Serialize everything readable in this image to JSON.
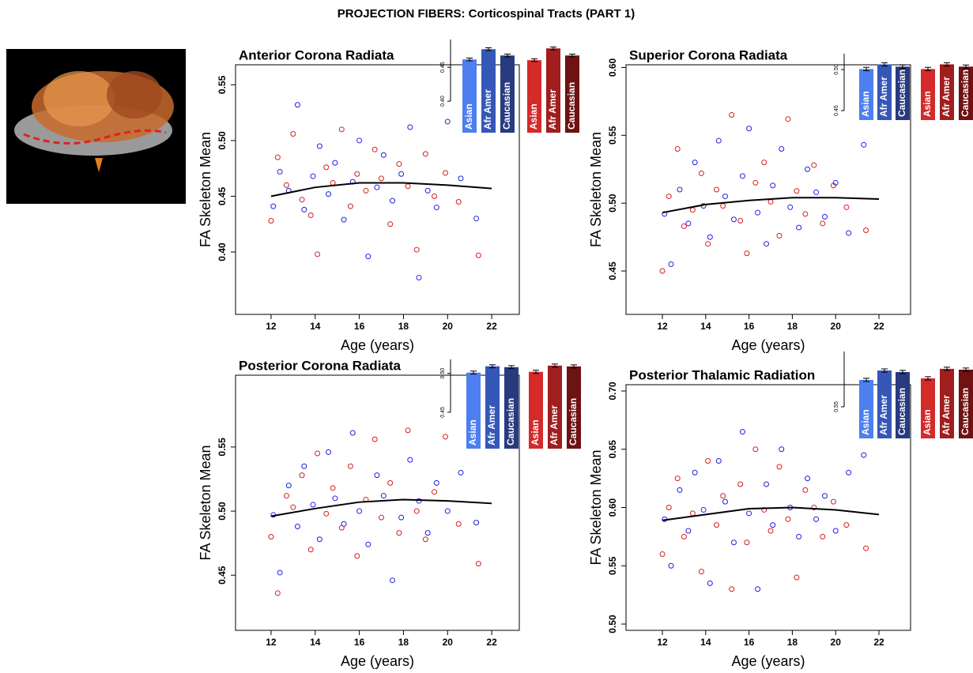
{
  "title": "PROJECTION FIBERS: Corticospinal Tracts (PART 1)",
  "chart_data": [
    {
      "type": "scatter",
      "title": "Anterior Corona Radiata",
      "xlabel": "Age (years)",
      "ylabel": "FA Skeleton Mean",
      "xlim": [
        10.39,
        23.25
      ],
      "ylim": [
        0.344,
        0.568
      ],
      "xticks": [
        12,
        14,
        16,
        18,
        20,
        22
      ],
      "yticks": [
        {
          "value": 0.4,
          "label": "0.40"
        },
        {
          "value": 0.45,
          "label": "0.45"
        },
        {
          "value": 0.5,
          "label": "0.50"
        },
        {
          "value": 0.55,
          "label": "0.55"
        }
      ],
      "series": [
        {
          "color": "#1f1fe6",
          "x": [
            12.1,
            12.4,
            12.8,
            13.2,
            13.5,
            13.9,
            14.2,
            14.6,
            14.9,
            15.3,
            15.7,
            16.0,
            16.4,
            16.8,
            17.1,
            17.5,
            17.9,
            18.3,
            18.7,
            19.1,
            19.5,
            20.0,
            20.6,
            21.3
          ],
          "values": [
            0.441,
            0.472,
            0.455,
            0.532,
            0.438,
            0.468,
            0.495,
            0.452,
            0.48,
            0.429,
            0.463,
            0.5,
            0.396,
            0.458,
            0.487,
            0.446,
            0.47,
            0.512,
            0.377,
            0.455,
            0.44,
            0.517,
            0.466,
            0.43
          ]
        },
        {
          "color": "#d42020",
          "x": [
            12.0,
            12.3,
            12.7,
            13.0,
            13.4,
            13.8,
            14.1,
            14.5,
            14.8,
            15.2,
            15.6,
            15.9,
            16.3,
            16.7,
            17.0,
            17.4,
            17.8,
            18.2,
            18.6,
            19.0,
            19.4,
            19.9,
            20.5,
            21.4
          ],
          "values": [
            0.428,
            0.485,
            0.46,
            0.506,
            0.447,
            0.433,
            0.398,
            0.476,
            0.462,
            0.51,
            0.441,
            0.47,
            0.455,
            0.492,
            0.466,
            0.425,
            0.479,
            0.459,
            0.402,
            0.488,
            0.45,
            0.471,
            0.445,
            0.397
          ]
        }
      ],
      "fit": {
        "color": "#000000",
        "x": [
          12,
          14,
          16,
          18,
          20,
          22
        ],
        "values": [
          0.45,
          0.458,
          0.462,
          0.462,
          0.46,
          0.457
        ]
      },
      "inset": {
        "type": "bar",
        "categories": [
          "Asian",
          "Afr Amer",
          "Caucasian",
          "Asian",
          "Afr Amer",
          "Caucasian"
        ],
        "colors": [
          "#4d7ff0",
          "#3558b8",
          "#283a80",
          "#d42a2a",
          "#a01e1e",
          "#6e1212"
        ],
        "values": [
          0.4616,
          0.4767,
          0.4674,
          0.4605,
          0.4779,
          0.4674
        ],
        "errors": [
          0.002,
          0.002,
          0.002,
          0.002,
          0.002,
          0.002
        ],
        "ylim": [
          0.3535,
          0.491
        ],
        "yticks": [
          {
            "value": 0.4,
            "label": "0.40"
          },
          {
            "value": 0.45,
            "label": "0.45"
          }
        ]
      }
    },
    {
      "type": "scatter",
      "title": "Superior Corona Radiata",
      "xlabel": "Age (years)",
      "ylabel": "FA Skeleton Mean",
      "xlim": [
        10.32,
        23.46
      ],
      "ylim": [
        0.418,
        0.602
      ],
      "xticks": [
        12,
        14,
        16,
        18,
        20,
        22
      ],
      "yticks": [
        {
          "value": 0.45,
          "label": "0.45"
        },
        {
          "value": 0.5,
          "label": "0.50"
        },
        {
          "value": 0.55,
          "label": "0.55"
        },
        {
          "value": 0.6,
          "label": "0.60"
        }
      ],
      "series": [
        {
          "color": "#1f1fe6",
          "x": [
            12.1,
            12.4,
            12.8,
            13.2,
            13.5,
            13.9,
            14.2,
            14.6,
            14.9,
            15.3,
            15.7,
            16.0,
            16.4,
            16.8,
            17.1,
            17.5,
            17.9,
            18.3,
            18.7,
            19.1,
            19.5,
            20.0,
            20.6,
            21.3
          ],
          "values": [
            0.492,
            0.455,
            0.51,
            0.485,
            0.53,
            0.498,
            0.475,
            0.546,
            0.505,
            0.488,
            0.52,
            0.555,
            0.493,
            0.47,
            0.513,
            0.54,
            0.497,
            0.482,
            0.525,
            0.508,
            0.49,
            0.515,
            0.478,
            0.543
          ]
        },
        {
          "color": "#d42020",
          "x": [
            12.0,
            12.3,
            12.7,
            13.0,
            13.4,
            13.8,
            14.1,
            14.5,
            14.8,
            15.2,
            15.6,
            15.9,
            16.3,
            16.7,
            17.0,
            17.4,
            17.8,
            18.2,
            18.6,
            19.0,
            19.4,
            19.9,
            20.5,
            21.4
          ],
          "values": [
            0.45,
            0.505,
            0.54,
            0.483,
            0.495,
            0.522,
            0.47,
            0.51,
            0.498,
            0.565,
            0.487,
            0.463,
            0.515,
            0.53,
            0.501,
            0.476,
            0.562,
            0.509,
            0.492,
            0.528,
            0.485,
            0.513,
            0.497,
            0.48
          ]
        }
      ],
      "fit": {
        "color": "#000000",
        "x": [
          12,
          14,
          16,
          18,
          20,
          22
        ],
        "values": [
          0.493,
          0.499,
          0.502,
          0.504,
          0.504,
          0.503
        ]
      },
      "inset": {
        "type": "bar",
        "categories": [
          "Asian",
          "Afr Amer",
          "Caucasian",
          "Asian",
          "Afr Amer",
          "Caucasian"
        ],
        "colors": [
          "#4d7ff0",
          "#3558b8",
          "#283a80",
          "#d42a2a",
          "#a01e1e",
          "#6e1212"
        ],
        "values": [
          0.5006,
          0.5063,
          0.5035,
          0.5006,
          0.5063,
          0.5035
        ],
        "errors": [
          0.002,
          0.002,
          0.002,
          0.002,
          0.002,
          0.002
        ],
        "ylim": [
          0.4385,
          0.5192
        ],
        "yticks": [
          {
            "value": 0.45,
            "label": "0.45"
          },
          {
            "value": 0.5,
            "label": "0.50"
          }
        ]
      }
    },
    {
      "type": "scatter",
      "title": "Posterior Corona Radiata",
      "xlabel": "Age (years)",
      "ylabel": "FA Skeleton Mean",
      "xlim": [
        10.39,
        23.25
      ],
      "ylim": [
        0.407,
        0.606
      ],
      "xticks": [
        12,
        14,
        16,
        18,
        20,
        22
      ],
      "yticks": [
        {
          "value": 0.45,
          "label": "0.45"
        },
        {
          "value": 0.5,
          "label": "0.50"
        },
        {
          "value": 0.55,
          "label": "0.55"
        }
      ],
      "series": [
        {
          "color": "#1f1fe6",
          "x": [
            12.1,
            12.4,
            12.8,
            13.2,
            13.5,
            13.9,
            14.2,
            14.6,
            14.9,
            15.3,
            15.7,
            16.0,
            16.4,
            16.8,
            17.1,
            17.5,
            17.9,
            18.3,
            18.7,
            19.1,
            19.5,
            20.0,
            20.6,
            21.3
          ],
          "values": [
            0.497,
            0.452,
            0.52,
            0.488,
            0.535,
            0.505,
            0.478,
            0.546,
            0.51,
            0.49,
            0.561,
            0.5,
            0.474,
            0.528,
            0.512,
            0.446,
            0.495,
            0.54,
            0.508,
            0.483,
            0.522,
            0.5,
            0.53,
            0.491
          ]
        },
        {
          "color": "#d42020",
          "x": [
            12.0,
            12.3,
            12.7,
            13.0,
            13.4,
            13.8,
            14.1,
            14.5,
            14.8,
            15.2,
            15.6,
            15.9,
            16.3,
            16.7,
            17.0,
            17.4,
            17.8,
            18.2,
            18.6,
            19.0,
            19.4,
            19.9,
            20.5,
            21.4
          ],
          "values": [
            0.48,
            0.436,
            0.512,
            0.503,
            0.528,
            0.47,
            0.545,
            0.498,
            0.518,
            0.487,
            0.535,
            0.465,
            0.509,
            0.556,
            0.495,
            0.522,
            0.483,
            0.563,
            0.5,
            0.478,
            0.515,
            0.558,
            0.49,
            0.459
          ]
        }
      ],
      "fit": {
        "color": "#000000",
        "x": [
          12,
          14,
          16,
          18,
          20,
          22
        ],
        "values": [
          0.496,
          0.502,
          0.507,
          0.509,
          0.508,
          0.506
        ]
      },
      "inset": {
        "type": "bar",
        "categories": [
          "Asian",
          "Afr Amer",
          "Caucasian",
          "Asian",
          "Afr Amer",
          "Caucasian"
        ],
        "colors": [
          "#4d7ff0",
          "#3558b8",
          "#283a80",
          "#d42a2a",
          "#a01e1e",
          "#6e1212"
        ],
        "values": [
          0.501,
          0.5092,
          0.508,
          0.502,
          0.51,
          0.509
        ],
        "errors": [
          0.002,
          0.002,
          0.002,
          0.002,
          0.002,
          0.002
        ],
        "ylim": [
          0.4031,
          0.518
        ],
        "yticks": [
          {
            "value": 0.45,
            "label": "0.45"
          },
          {
            "value": 0.5,
            "label": "0.50"
          }
        ]
      }
    },
    {
      "type": "scatter",
      "title": "Posterior Thalamic Radiation",
      "xlabel": "Age (years)",
      "ylabel": "FA Skeleton Mean",
      "xlim": [
        10.32,
        23.46
      ],
      "ylim": [
        0.4946,
        0.7054
      ],
      "xticks": [
        12,
        14,
        16,
        18,
        20,
        22
      ],
      "yticks": [
        {
          "value": 0.5,
          "label": "0.50"
        },
        {
          "value": 0.55,
          "label": "0.55"
        },
        {
          "value": 0.6,
          "label": "0.60"
        },
        {
          "value": 0.65,
          "label": "0.65"
        },
        {
          "value": 0.7,
          "label": "0.70"
        }
      ],
      "series": [
        {
          "color": "#1f1fe6",
          "x": [
            12.1,
            12.4,
            12.8,
            13.2,
            13.5,
            13.9,
            14.2,
            14.6,
            14.9,
            15.3,
            15.7,
            16.0,
            16.4,
            16.8,
            17.1,
            17.5,
            17.9,
            18.3,
            18.7,
            19.1,
            19.5,
            20.0,
            20.6,
            21.3
          ],
          "values": [
            0.59,
            0.55,
            0.615,
            0.58,
            0.63,
            0.598,
            0.535,
            0.64,
            0.605,
            0.57,
            0.665,
            0.595,
            0.53,
            0.62,
            0.585,
            0.65,
            0.6,
            0.575,
            0.625,
            0.59,
            0.61,
            0.58,
            0.63,
            0.645
          ]
        },
        {
          "color": "#d42020",
          "x": [
            12.0,
            12.3,
            12.7,
            13.0,
            13.4,
            13.8,
            14.1,
            14.5,
            14.8,
            15.2,
            15.6,
            15.9,
            16.3,
            16.7,
            17.0,
            17.4,
            17.8,
            18.2,
            18.6,
            19.0,
            19.4,
            19.9,
            20.5,
            21.4
          ],
          "values": [
            0.56,
            0.6,
            0.625,
            0.575,
            0.595,
            0.545,
            0.64,
            0.585,
            0.61,
            0.53,
            0.62,
            0.57,
            0.65,
            0.598,
            0.58,
            0.635,
            0.59,
            0.54,
            0.615,
            0.6,
            0.575,
            0.605,
            0.585,
            0.565
          ]
        }
      ],
      "fit": {
        "color": "#000000",
        "x": [
          12,
          14,
          16,
          18,
          20,
          22
        ],
        "values": [
          0.589,
          0.594,
          0.599,
          0.6,
          0.598,
          0.594
        ]
      },
      "inset": {
        "type": "bar",
        "categories": [
          "Asian",
          "Afr Amer",
          "Caucasian",
          "Asian",
          "Afr Amer",
          "Caucasian"
        ],
        "colors": [
          "#4d7ff0",
          "#3558b8",
          "#283a80",
          "#d42a2a",
          "#a01e1e",
          "#6e1212"
        ],
        "values": [
          0.5827,
          0.5942,
          0.5923,
          0.5846,
          0.5962,
          0.5952
        ],
        "errors": [
          0.002,
          0.002,
          0.002,
          0.002,
          0.002,
          0.002
        ],
        "ylim": [
          0.5115,
          0.6173
        ],
        "yticks": [
          {
            "value": 0.55,
            "label": "0.55"
          }
        ]
      }
    }
  ]
}
